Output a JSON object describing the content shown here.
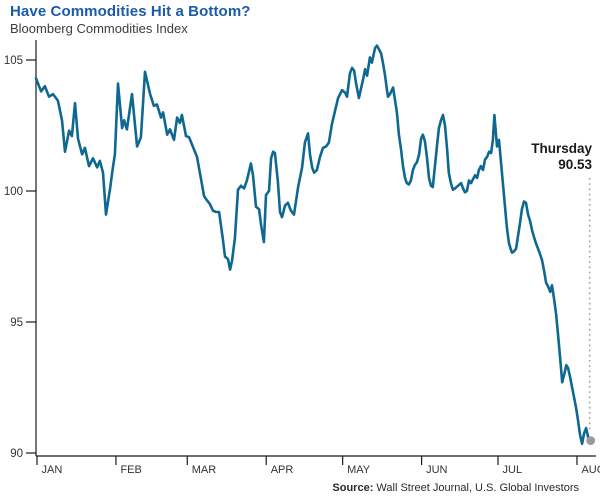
{
  "colors": {
    "title_blue": "#1a5ca8",
    "subtitle_gray": "#3d3d3d",
    "line_teal": "#0f6891",
    "axis_black": "#1a1a1a",
    "tick_label_gray": "#333333",
    "end_dot_gray": "#9a9a9a",
    "dotted_line_gray": "#a8a8a8",
    "annotation_black": "#1a1a1a"
  },
  "source": {
    "label": "Source:",
    "text": " Wall Street Journal, U.S. Global Investors"
  },
  "chart_data": {
    "type": "line",
    "title": "Have Commodities Hit a Bottom?",
    "subtitle": "Bloomberg Commodities Index",
    "grid": false,
    "legend": "none",
    "y_axis": {
      "min": 90,
      "max": 105,
      "ticks": [
        105,
        100,
        95,
        90
      ]
    },
    "x_axis": {
      "unit": "day-of-year",
      "ticks": [
        {
          "label": "JAN",
          "day": 1
        },
        {
          "label": "FEB",
          "day": 32
        },
        {
          "label": "MAR",
          "day": 60
        },
        {
          "label": "APR",
          "day": 91
        },
        {
          "label": "MAY",
          "day": 121
        },
        {
          "label": "JUN",
          "day": 152
        },
        {
          "label": "JUL",
          "day": 182
        },
        {
          "label": "AUG",
          "day": 213
        }
      ]
    },
    "annotation": {
      "line1": "Thursday",
      "line2": "90.53",
      "day": 218,
      "value": 90.53
    },
    "end_marker": {
      "day": 218,
      "value": 90.53
    },
    "series": [
      {
        "name": "Bloomberg Commodities Index",
        "points": [
          [
            0.6,
            104.3
          ],
          [
            2.6,
            103.8
          ],
          [
            4.1,
            104.0
          ],
          [
            5.7,
            103.6
          ],
          [
            7.3,
            103.7
          ],
          [
            9.2,
            103.45
          ],
          [
            10.8,
            102.7
          ],
          [
            12.0,
            101.5
          ],
          [
            13.6,
            102.3
          ],
          [
            14.7,
            102.1
          ],
          [
            15.9,
            103.35
          ],
          [
            17.1,
            102.0
          ],
          [
            18.7,
            101.4
          ],
          [
            19.8,
            101.65
          ],
          [
            21.4,
            100.95
          ],
          [
            23.0,
            101.25
          ],
          [
            24.6,
            100.9
          ],
          [
            25.7,
            101.15
          ],
          [
            26.9,
            100.7
          ],
          [
            28.1,
            99.1
          ],
          [
            29.7,
            100.1
          ],
          [
            30.8,
            100.9
          ],
          [
            31.6,
            101.4
          ],
          [
            32.8,
            104.1
          ],
          [
            34.4,
            102.4
          ],
          [
            35.2,
            102.7
          ],
          [
            36.3,
            102.35
          ],
          [
            38.3,
            103.7
          ],
          [
            40.3,
            101.7
          ],
          [
            41.8,
            102.05
          ],
          [
            43.4,
            104.55
          ],
          [
            45.4,
            103.7
          ],
          [
            46.9,
            103.25
          ],
          [
            48.1,
            103.3
          ],
          [
            49.7,
            102.8
          ],
          [
            50.5,
            103.0
          ],
          [
            52.1,
            102.15
          ],
          [
            53.2,
            102.35
          ],
          [
            54.8,
            101.95
          ],
          [
            56.0,
            102.8
          ],
          [
            57.1,
            102.6
          ],
          [
            57.9,
            102.9
          ],
          [
            59.5,
            102.1
          ],
          [
            60.7,
            102.05
          ],
          [
            63.8,
            101.3
          ],
          [
            66.6,
            99.8
          ],
          [
            67.7,
            99.65
          ],
          [
            68.9,
            99.5
          ],
          [
            70.1,
            99.25
          ],
          [
            71.3,
            99.2
          ],
          [
            72.5,
            99.2
          ],
          [
            73.2,
            98.7
          ],
          [
            74.0,
            98.15
          ],
          [
            74.8,
            97.5
          ],
          [
            76.0,
            97.4
          ],
          [
            76.8,
            97.0
          ],
          [
            77.6,
            97.35
          ],
          [
            78.7,
            98.2
          ],
          [
            79.9,
            100.05
          ],
          [
            81.1,
            100.2
          ],
          [
            82.3,
            100.1
          ],
          [
            83.4,
            100.4
          ],
          [
            85.0,
            101.05
          ],
          [
            85.8,
            100.6
          ],
          [
            87.0,
            99.4
          ],
          [
            88.2,
            99.3
          ],
          [
            89.0,
            98.7
          ],
          [
            90.1,
            98.05
          ],
          [
            90.9,
            99.85
          ],
          [
            92.1,
            100.0
          ],
          [
            92.9,
            101.25
          ],
          [
            93.7,
            101.5
          ],
          [
            94.4,
            101.45
          ],
          [
            95.6,
            100.35
          ],
          [
            96.4,
            99.2
          ],
          [
            97.2,
            99.0
          ],
          [
            98.4,
            99.45
          ],
          [
            99.5,
            99.55
          ],
          [
            100.7,
            99.25
          ],
          [
            101.9,
            99.1
          ],
          [
            103.5,
            100.15
          ],
          [
            105.1,
            100.9
          ],
          [
            106.2,
            101.85
          ],
          [
            107.4,
            102.2
          ],
          [
            108.2,
            101.4
          ],
          [
            109.0,
            100.9
          ],
          [
            109.8,
            100.7
          ],
          [
            110.9,
            100.8
          ],
          [
            112.1,
            101.3
          ],
          [
            113.3,
            101.65
          ],
          [
            114.5,
            101.7
          ],
          [
            115.6,
            101.85
          ],
          [
            116.8,
            102.55
          ],
          [
            118.0,
            103.05
          ],
          [
            119.2,
            103.55
          ],
          [
            120.8,
            103.85
          ],
          [
            122.0,
            103.75
          ],
          [
            122.7,
            103.6
          ],
          [
            123.9,
            104.5
          ],
          [
            124.7,
            104.7
          ],
          [
            125.5,
            104.6
          ],
          [
            126.3,
            104.1
          ],
          [
            127.4,
            103.55
          ],
          [
            129.0,
            104.25
          ],
          [
            129.8,
            104.65
          ],
          [
            130.6,
            104.4
          ],
          [
            131.7,
            105.1
          ],
          [
            132.5,
            104.9
          ],
          [
            133.7,
            105.45
          ],
          [
            134.5,
            105.55
          ],
          [
            135.3,
            105.4
          ],
          [
            136.1,
            105.25
          ],
          [
            136.8,
            104.9
          ],
          [
            137.6,
            104.45
          ],
          [
            138.4,
            103.85
          ],
          [
            138.8,
            103.6
          ],
          [
            139.6,
            103.7
          ],
          [
            140.8,
            103.95
          ],
          [
            141.5,
            103.5
          ],
          [
            142.3,
            103.0
          ],
          [
            143.1,
            102.15
          ],
          [
            143.9,
            101.6
          ],
          [
            144.7,
            100.95
          ],
          [
            145.5,
            100.5
          ],
          [
            146.2,
            100.3
          ],
          [
            147.0,
            100.25
          ],
          [
            147.8,
            100.4
          ],
          [
            148.6,
            100.8
          ],
          [
            149.4,
            101.0
          ],
          [
            150.2,
            101.1
          ],
          [
            151.0,
            101.4
          ],
          [
            151.8,
            102.0
          ],
          [
            152.5,
            102.15
          ],
          [
            153.3,
            101.9
          ],
          [
            154.1,
            101.3
          ],
          [
            154.9,
            100.5
          ],
          [
            155.7,
            100.2
          ],
          [
            156.4,
            100.15
          ],
          [
            157.2,
            100.9
          ],
          [
            158.0,
            101.7
          ],
          [
            158.8,
            102.4
          ],
          [
            159.6,
            102.7
          ],
          [
            160.4,
            102.9
          ],
          [
            161.2,
            102.5
          ],
          [
            162.0,
            101.6
          ],
          [
            162.7,
            100.7
          ],
          [
            163.5,
            100.3
          ],
          [
            164.3,
            100.05
          ],
          [
            165.1,
            100.1
          ],
          [
            166.3,
            100.2
          ],
          [
            167.5,
            100.3
          ],
          [
            168.3,
            100.1
          ],
          [
            169.0,
            99.95
          ],
          [
            169.8,
            100.0
          ],
          [
            170.6,
            100.4
          ],
          [
            171.4,
            100.3
          ],
          [
            172.2,
            100.45
          ],
          [
            173.0,
            100.6
          ],
          [
            173.8,
            100.5
          ],
          [
            174.5,
            100.8
          ],
          [
            175.3,
            100.95
          ],
          [
            176.1,
            100.8
          ],
          [
            176.9,
            101.2
          ],
          [
            177.7,
            101.3
          ],
          [
            178.5,
            101.5
          ],
          [
            179.3,
            101.45
          ],
          [
            180.0,
            101.95
          ],
          [
            180.6,
            102.9
          ],
          [
            181.6,
            101.7
          ],
          [
            182.4,
            101.95
          ],
          [
            183.2,
            101.05
          ],
          [
            184.2,
            100.0
          ],
          [
            185.5,
            98.6
          ],
          [
            186.3,
            98.0
          ],
          [
            187.1,
            97.75
          ],
          [
            187.5,
            97.65
          ],
          [
            188.3,
            97.7
          ],
          [
            189.1,
            97.8
          ],
          [
            189.9,
            98.3
          ],
          [
            190.6,
            98.75
          ],
          [
            191.4,
            99.3
          ],
          [
            192.2,
            99.6
          ],
          [
            193.0,
            99.55
          ],
          [
            193.8,
            99.1
          ],
          [
            194.6,
            98.85
          ],
          [
            195.4,
            98.5
          ],
          [
            196.1,
            98.25
          ],
          [
            196.9,
            98.0
          ],
          [
            197.7,
            97.8
          ],
          [
            198.5,
            97.6
          ],
          [
            199.3,
            97.35
          ],
          [
            200.1,
            96.95
          ],
          [
            200.9,
            96.5
          ],
          [
            201.7,
            96.35
          ],
          [
            202.5,
            96.15
          ],
          [
            203.2,
            96.4
          ],
          [
            204.0,
            95.9
          ],
          [
            204.8,
            95.3
          ],
          [
            205.6,
            94.5
          ],
          [
            206.4,
            93.6
          ],
          [
            207.2,
            92.7
          ],
          [
            208.0,
            93.0
          ],
          [
            208.8,
            93.35
          ],
          [
            209.5,
            93.25
          ],
          [
            210.3,
            92.9
          ],
          [
            211.1,
            92.5
          ],
          [
            211.9,
            92.1
          ],
          [
            212.7,
            91.7
          ],
          [
            213.5,
            91.2
          ],
          [
            214.2,
            90.7
          ],
          [
            215.0,
            90.35
          ],
          [
            215.8,
            90.75
          ],
          [
            216.6,
            90.95
          ],
          [
            217.4,
            90.6
          ],
          [
            218.0,
            90.53
          ]
        ]
      }
    ]
  }
}
